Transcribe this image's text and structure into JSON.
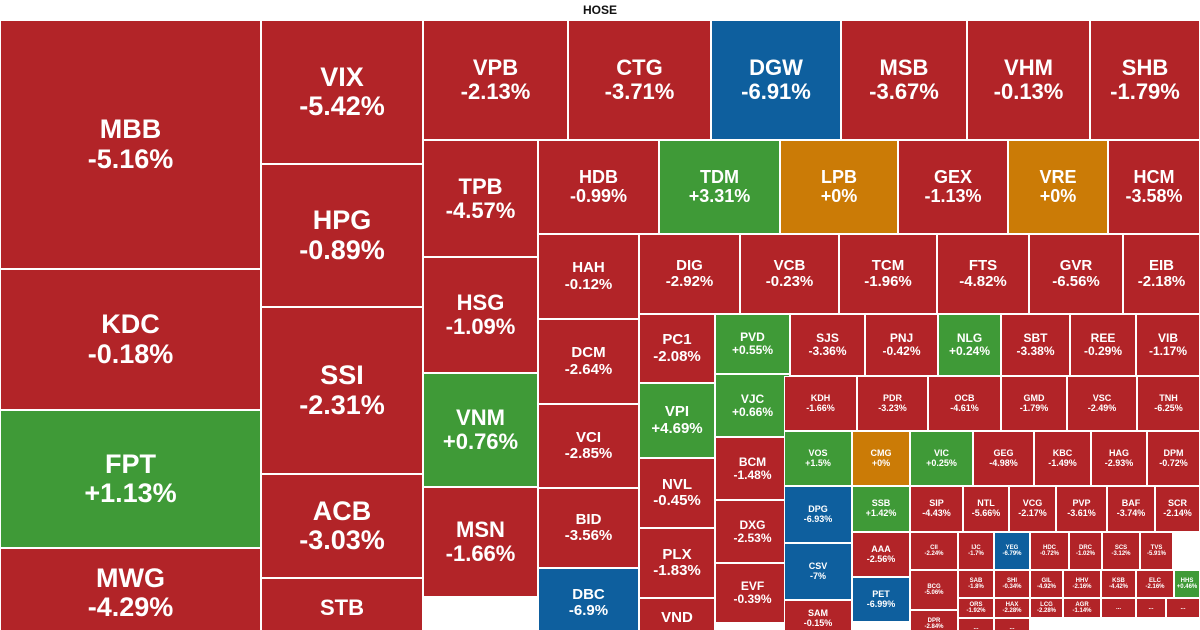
{
  "exchange": "HOSE",
  "colors": {
    "down": "#b22428",
    "up": "#3f9a37",
    "unchanged": "#cb7b06",
    "floor": "#0e5f9e"
  },
  "tiles": [
    {
      "ticker": "MBB",
      "change": "-5.16%",
      "status": "down"
    },
    {
      "ticker": "KDC",
      "change": "-0.18%",
      "status": "down"
    },
    {
      "ticker": "FPT",
      "change": "+1.13%",
      "status": "up"
    },
    {
      "ticker": "MWG",
      "change": "-4.29%",
      "status": "down"
    },
    {
      "ticker": "VIX",
      "change": "-5.42%",
      "status": "down"
    },
    {
      "ticker": "HPG",
      "change": "-0.89%",
      "status": "down"
    },
    {
      "ticker": "SSI",
      "change": "-2.31%",
      "status": "down"
    },
    {
      "ticker": "ACB",
      "change": "-3.03%",
      "status": "down"
    },
    {
      "ticker": "STB",
      "change": "",
      "status": "down"
    },
    {
      "ticker": "VPB",
      "change": "-2.13%",
      "status": "down"
    },
    {
      "ticker": "CTG",
      "change": "-3.71%",
      "status": "down"
    },
    {
      "ticker": "DGW",
      "change": "-6.91%",
      "status": "floor"
    },
    {
      "ticker": "MSB",
      "change": "-3.67%",
      "status": "down"
    },
    {
      "ticker": "VHM",
      "change": "-0.13%",
      "status": "down"
    },
    {
      "ticker": "SHB",
      "change": "-1.79%",
      "status": "down"
    },
    {
      "ticker": "TPB",
      "change": "-4.57%",
      "status": "down"
    },
    {
      "ticker": "HSG",
      "change": "-1.09%",
      "status": "down"
    },
    {
      "ticker": "VNM",
      "change": "+0.76%",
      "status": "up"
    },
    {
      "ticker": "MSN",
      "change": "-1.66%",
      "status": "down"
    },
    {
      "ticker": "HDB",
      "change": "-0.99%",
      "status": "down"
    },
    {
      "ticker": "TDM",
      "change": "+3.31%",
      "status": "up"
    },
    {
      "ticker": "LPB",
      "change": "+0%",
      "status": "unchanged"
    },
    {
      "ticker": "GEX",
      "change": "-1.13%",
      "status": "down"
    },
    {
      "ticker": "VRE",
      "change": "+0%",
      "status": "unchanged"
    },
    {
      "ticker": "HCM",
      "change": "-3.58%",
      "status": "down"
    },
    {
      "ticker": "HAH",
      "change": "-0.12%",
      "status": "down"
    },
    {
      "ticker": "DCM",
      "change": "-2.64%",
      "status": "down"
    },
    {
      "ticker": "VCI",
      "change": "-2.85%",
      "status": "down"
    },
    {
      "ticker": "BID",
      "change": "-3.56%",
      "status": "down"
    },
    {
      "ticker": "DBC",
      "change": "-6.9%",
      "status": "floor"
    },
    {
      "ticker": "DIG",
      "change": "-2.92%",
      "status": "down"
    },
    {
      "ticker": "VCB",
      "change": "-0.23%",
      "status": "down"
    },
    {
      "ticker": "TCM",
      "change": "-1.96%",
      "status": "down"
    },
    {
      "ticker": "FTS",
      "change": "-4.82%",
      "status": "down"
    },
    {
      "ticker": "GVR",
      "change": "-6.56%",
      "status": "down"
    },
    {
      "ticker": "EIB",
      "change": "-2.18%",
      "status": "down"
    },
    {
      "ticker": "PC1",
      "change": "-2.08%",
      "status": "down"
    },
    {
      "ticker": "VPI",
      "change": "+4.69%",
      "status": "up"
    },
    {
      "ticker": "NVL",
      "change": "-0.45%",
      "status": "down"
    },
    {
      "ticker": "PLX",
      "change": "-1.83%",
      "status": "down"
    },
    {
      "ticker": "VND",
      "change": "",
      "status": "down"
    },
    {
      "ticker": "PVD",
      "change": "+0.55%",
      "status": "up"
    },
    {
      "ticker": "VJC",
      "change": "+0.66%",
      "status": "up"
    },
    {
      "ticker": "BCM",
      "change": "-1.48%",
      "status": "down"
    },
    {
      "ticker": "DXG",
      "change": "-2.53%",
      "status": "down"
    },
    {
      "ticker": "EVF",
      "change": "-0.39%",
      "status": "down"
    },
    {
      "ticker": "SJS",
      "change": "-3.36%",
      "status": "down"
    },
    {
      "ticker": "PNJ",
      "change": "-0.42%",
      "status": "down"
    },
    {
      "ticker": "NLG",
      "change": "+0.24%",
      "status": "up"
    },
    {
      "ticker": "SBT",
      "change": "-3.38%",
      "status": "down"
    },
    {
      "ticker": "REE",
      "change": "-0.29%",
      "status": "down"
    },
    {
      "ticker": "VIB",
      "change": "-1.17%",
      "status": "down"
    },
    {
      "ticker": "KDH",
      "change": "-1.66%",
      "status": "down"
    },
    {
      "ticker": "PDR",
      "change": "-3.23%",
      "status": "down"
    },
    {
      "ticker": "OCB",
      "change": "-4.61%",
      "status": "down"
    },
    {
      "ticker": "GMD",
      "change": "-1.79%",
      "status": "down"
    },
    {
      "ticker": "VSC",
      "change": "-2.49%",
      "status": "down"
    },
    {
      "ticker": "TNH",
      "change": "-6.25%",
      "status": "down"
    },
    {
      "ticker": "VOS",
      "change": "+1.5%",
      "status": "up"
    },
    {
      "ticker": "CMG",
      "change": "+0%",
      "status": "unchanged"
    },
    {
      "ticker": "VIC",
      "change": "+0.25%",
      "status": "up"
    },
    {
      "ticker": "GEG",
      "change": "-4.98%",
      "status": "down"
    },
    {
      "ticker": "KBC",
      "change": "-1.49%",
      "status": "down"
    },
    {
      "ticker": "HAG",
      "change": "-2.93%",
      "status": "down"
    },
    {
      "ticker": "DPM",
      "change": "-0.72%",
      "status": "down"
    },
    {
      "ticker": "DPG",
      "change": "-6.93%",
      "status": "floor"
    },
    {
      "ticker": "SSB",
      "change": "+1.42%",
      "status": "up"
    },
    {
      "ticker": "CSV",
      "change": "-7%",
      "status": "floor"
    },
    {
      "ticker": "AAA",
      "change": "-2.56%",
      "status": "down"
    },
    {
      "ticker": "SAM",
      "change": "-0.15%",
      "status": "down"
    },
    {
      "ticker": "PET",
      "change": "-6.99%",
      "status": "floor"
    },
    {
      "ticker": "SIP",
      "change": "-4.43%",
      "status": "down"
    },
    {
      "ticker": "NTL",
      "change": "-5.66%",
      "status": "down"
    },
    {
      "ticker": "VCG",
      "change": "-2.17%",
      "status": "down"
    },
    {
      "ticker": "PVP",
      "change": "-3.61%",
      "status": "down"
    },
    {
      "ticker": "BAF",
      "change": "-3.74%",
      "status": "down"
    },
    {
      "ticker": "SCR",
      "change": "-2.14%",
      "status": "down"
    },
    {
      "ticker": "CII",
      "change": "-2.24%",
      "status": "down"
    },
    {
      "ticker": "IJC",
      "change": "-1.7%",
      "status": "down"
    },
    {
      "ticker": "YEG",
      "change": "-6.79%",
      "status": "floor"
    },
    {
      "ticker": "HDC",
      "change": "-0.72%",
      "status": "down"
    },
    {
      "ticker": "DRC",
      "change": "-1.02%",
      "status": "down"
    },
    {
      "ticker": "SCS",
      "change": "-3.12%",
      "status": "down"
    },
    {
      "ticker": "TVS",
      "change": "-5.91%",
      "status": "down"
    },
    {
      "ticker": "BCG",
      "change": "-5.06%",
      "status": "down"
    },
    {
      "ticker": "SAB",
      "change": "-1.8%",
      "status": "down"
    },
    {
      "ticker": "SHI",
      "change": "-0.34%",
      "status": "down"
    },
    {
      "ticker": "GIL",
      "change": "-4.92%",
      "status": "down"
    },
    {
      "ticker": "HHV",
      "change": "-2.16%",
      "status": "down"
    },
    {
      "ticker": "KSB",
      "change": "-4.42%",
      "status": "down"
    },
    {
      "ticker": "ELC",
      "change": "-2.16%",
      "status": "down"
    },
    {
      "ticker": "HHS",
      "change": "+0.46%",
      "status": "up"
    },
    {
      "ticker": "DPR",
      "change": "-2.84%",
      "status": "down"
    },
    {
      "ticker": "ORS",
      "change": "-1.92%",
      "status": "down"
    },
    {
      "ticker": "HAX",
      "change": "-2.28%",
      "status": "down"
    },
    {
      "ticker": "LCG",
      "change": "-2.28%",
      "status": "down"
    },
    {
      "ticker": "AGR",
      "change": "-1.14%",
      "status": "down"
    },
    {
      "ticker": "...",
      "change": "",
      "status": "down"
    },
    {
      "ticker": "...",
      "change": "",
      "status": "down"
    },
    {
      "ticker": "...",
      "change": "",
      "status": "down"
    },
    {
      "ticker": "...",
      "change": "",
      "status": "down"
    },
    {
      "ticker": "...",
      "change": "",
      "status": "down"
    }
  ]
}
